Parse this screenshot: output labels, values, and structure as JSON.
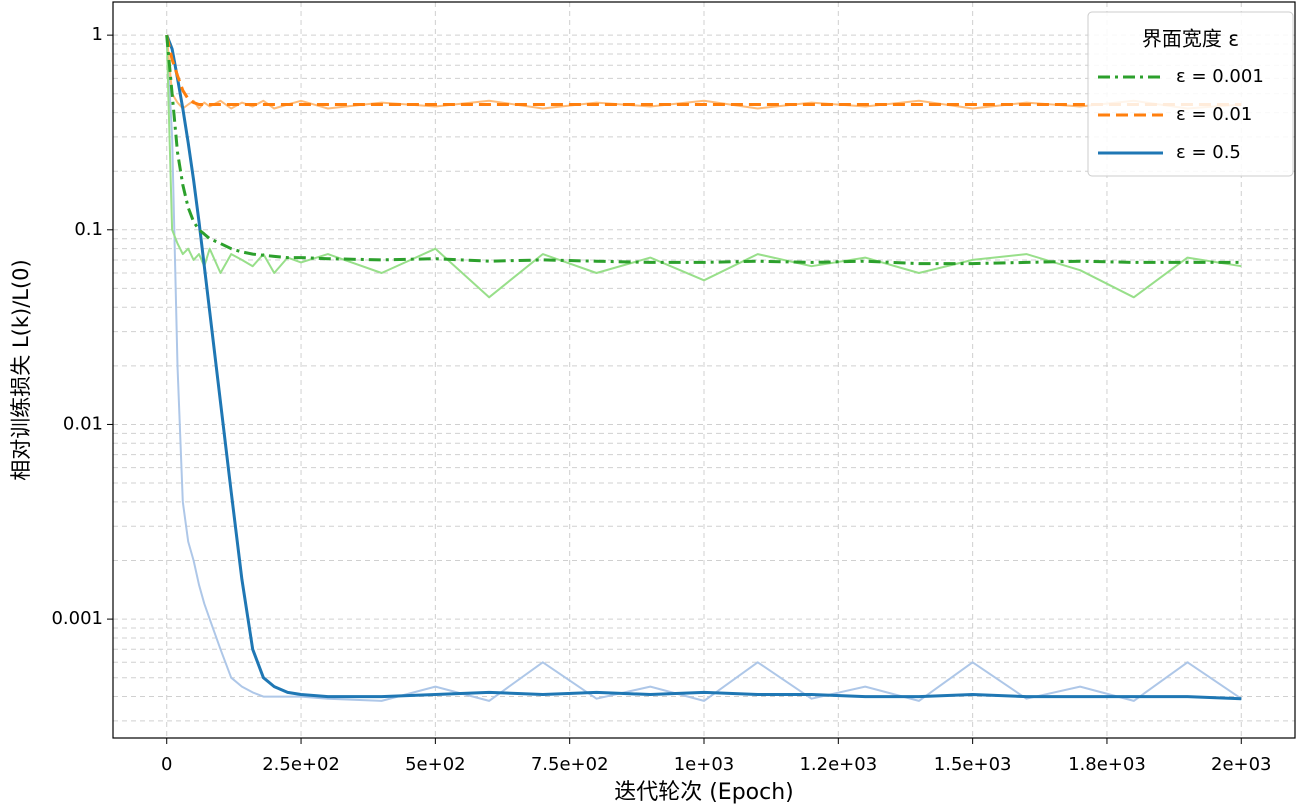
{
  "chart_data": {
    "type": "line",
    "xlabel": "迭代轮次 (Epoch)",
    "ylabel": "相对训练损失 L(k)/L(0)",
    "log_y": true,
    "grid": true,
    "legend": "upper right",
    "legend_title": "界面宽度  ε",
    "xlim": [
      -100,
      2100
    ],
    "ylim": [
      0.000245,
      1.48
    ],
    "xticks": [
      0,
      {
        "value": 250,
        "label": "2.5e+02"
      },
      {
        "value": 500,
        "label": "5e+02"
      },
      {
        "value": 750,
        "label": "7.5e+02"
      },
      {
        "value": 1000,
        "label": "1e+03"
      },
      {
        "value": 1250,
        "label": "1.2e+03"
      },
      {
        "value": 1500,
        "label": "1.5e+03"
      },
      {
        "value": 1750,
        "label": "1.8e+03"
      },
      {
        "value": 2000,
        "label": "2e+03"
      }
    ],
    "yticks": [
      0.001,
      0.01,
      0.1,
      1
    ],
    "yminorticks": [
      0.0003,
      0.0004,
      0.0005,
      0.0006,
      0.0007,
      0.0008,
      0.0009,
      0.002,
      0.003,
      0.004,
      0.005,
      0.006,
      0.007,
      0.008,
      0.009,
      0.02,
      0.03,
      0.04,
      0.05,
      0.06,
      0.07,
      0.08,
      0.09,
      0.2,
      0.3,
      0.4,
      0.5,
      0.6,
      0.7,
      0.8,
      0.9
    ],
    "x": [
      0,
      10,
      20,
      30,
      40,
      50,
      60,
      70,
      80,
      100,
      120,
      140,
      160,
      180,
      200,
      225,
      250,
      300,
      400,
      500,
      600,
      700,
      800,
      900,
      1000,
      1100,
      1200,
      1300,
      1400,
      1500,
      1600,
      1700,
      1800,
      1900,
      2000
    ],
    "series": [
      {
        "name": "ε = 0.001",
        "color": "#2ca02c",
        "linestyle": "dashdot",
        "values": [
          1,
          0.5,
          0.25,
          0.17,
          0.13,
          0.11,
          0.1,
          0.095,
          0.09,
          0.085,
          0.08,
          0.077,
          0.075,
          0.074,
          0.073,
          0.072,
          0.072,
          0.071,
          0.07,
          0.071,
          0.069,
          0.07,
          0.069,
          0.068,
          0.068,
          0.069,
          0.068,
          0.069,
          0.067,
          0.067,
          0.068,
          0.069,
          0.068,
          0.068,
          0.068
        ]
      },
      {
        "name": "ε = 0.01",
        "color": "#ff7f0e",
        "linestyle": "dashed",
        "values": [
          1,
          0.75,
          0.62,
          0.52,
          0.47,
          0.45,
          0.44,
          0.44,
          0.44,
          0.44,
          0.44,
          0.44,
          0.44,
          0.44,
          0.44,
          0.44,
          0.44,
          0.44,
          0.44,
          0.44,
          0.44,
          0.44,
          0.44,
          0.44,
          0.44,
          0.44,
          0.44,
          0.44,
          0.44,
          0.44,
          0.44,
          0.44,
          0.44,
          0.44,
          0.44
        ]
      },
      {
        "name": "ε = 0.5",
        "color": "#1f77b4",
        "linestyle": "solid",
        "values": [
          1,
          0.85,
          0.6,
          0.42,
          0.28,
          0.18,
          0.11,
          0.065,
          0.038,
          0.013,
          0.0045,
          0.0016,
          0.0007,
          0.0005,
          0.00045,
          0.00042,
          0.00041,
          0.0004,
          0.0004,
          0.00041,
          0.00042,
          0.00041,
          0.00042,
          0.00041,
          0.00042,
          0.00041,
          0.00041,
          0.0004,
          0.0004,
          0.00041,
          0.0004,
          0.0004,
          0.0004,
          0.0004,
          0.00039
        ]
      },
      {
        "color": "#98df8a",
        "linestyle": "solid",
        "values": [
          1,
          0.1,
          0.085,
          0.075,
          0.08,
          0.07,
          0.075,
          0.065,
          0.08,
          0.06,
          0.075,
          0.07,
          0.065,
          0.075,
          0.06,
          0.072,
          0.068,
          0.075,
          0.06,
          0.08,
          0.045,
          0.075,
          0.06,
          0.072,
          0.055,
          0.075,
          0.065,
          0.072,
          0.06,
          0.07,
          0.075,
          0.062,
          0.045,
          0.072,
          0.065
        ]
      },
      {
        "color": "#ffbb78",
        "linestyle": "solid",
        "values": [
          1,
          0.5,
          0.45,
          0.42,
          0.44,
          0.46,
          0.42,
          0.45,
          0.43,
          0.46,
          0.42,
          0.45,
          0.43,
          0.46,
          0.42,
          0.44,
          0.46,
          0.42,
          0.45,
          0.43,
          0.46,
          0.42,
          0.45,
          0.43,
          0.46,
          0.42,
          0.45,
          0.43,
          0.46,
          0.42,
          0.45,
          0.43,
          0.46,
          0.42,
          0.44
        ]
      },
      {
        "color": "#aec7e8",
        "linestyle": "solid",
        "values": [
          1,
          0.3,
          0.02,
          0.004,
          0.0025,
          0.002,
          0.0015,
          0.0012,
          0.001,
          0.0007,
          0.0005,
          0.00045,
          0.00042,
          0.0004,
          0.0004,
          0.0004,
          0.0004,
          0.00039,
          0.00038,
          0.00045,
          0.00038,
          0.0006,
          0.00039,
          0.00045,
          0.00038,
          0.0006,
          0.00039,
          0.00045,
          0.00038,
          0.0006,
          0.00039,
          0.00045,
          0.00038,
          0.0006,
          0.00039
        ]
      }
    ]
  }
}
